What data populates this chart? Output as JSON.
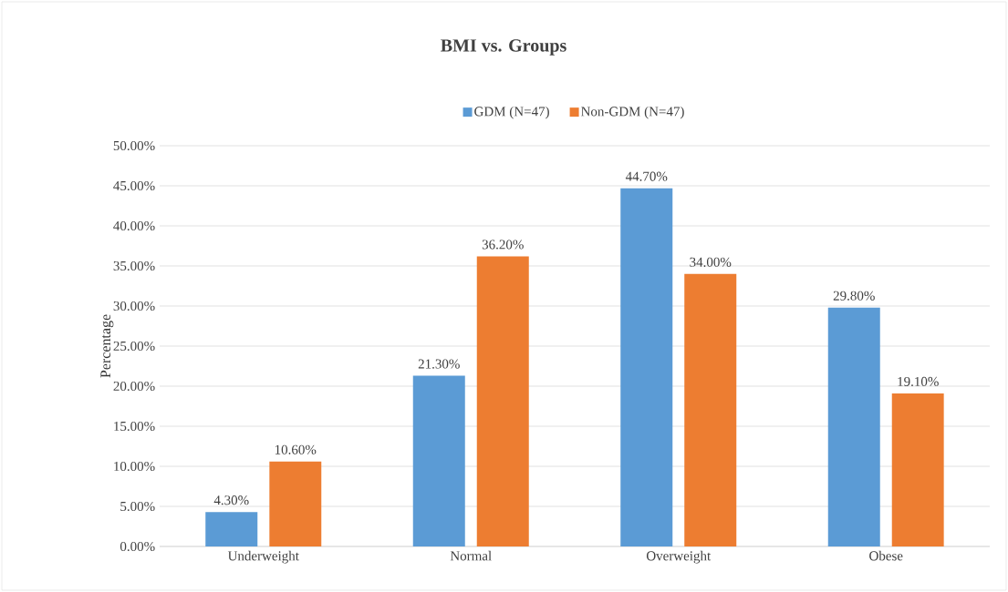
{
  "chart_data": {
    "type": "bar",
    "title": "BMI vs. Groups",
    "ylabel": "Percentage",
    "categories": [
      "Underweight",
      "Normal",
      "Overweight",
      "Obese"
    ],
    "series": [
      {
        "name": "GDM (N=47)",
        "color": "#5b9bd5",
        "values": [
          4.3,
          21.3,
          44.7,
          29.8
        ],
        "value_labels": [
          "4.30%",
          "21.30%",
          "44.70%",
          "29.80%"
        ]
      },
      {
        "name": "Non-GDM (N=47)",
        "color": "#ed7d31",
        "values": [
          10.6,
          36.2,
          34.0,
          19.1
        ],
        "value_labels": [
          "10.60%",
          "36.20%",
          "34.00%",
          "19.10%"
        ]
      }
    ],
    "ylim": [
      0,
      50
    ],
    "yticks": [
      {
        "value": 0,
        "label": "0.00%"
      },
      {
        "value": 5,
        "label": "5.00%"
      },
      {
        "value": 10,
        "label": "10.00%"
      },
      {
        "value": 15,
        "label": "15.00%"
      },
      {
        "value": 20,
        "label": "20.00%"
      },
      {
        "value": 25,
        "label": "25.00%"
      },
      {
        "value": 30,
        "label": "30.00%"
      },
      {
        "value": 35,
        "label": "35.00%"
      },
      {
        "value": 40,
        "label": "40.00%"
      },
      {
        "value": 45,
        "label": "45.00%"
      },
      {
        "value": 50,
        "label": "50.00%"
      }
    ],
    "grid": "y",
    "legend": "top"
  }
}
